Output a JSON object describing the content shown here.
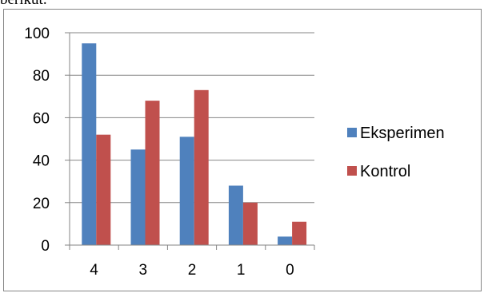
{
  "page": {
    "top_text": "berikut."
  },
  "chart_data": {
    "type": "bar",
    "categories": [
      "4",
      "3",
      "2",
      "1",
      "0"
    ],
    "series": [
      {
        "name": "Eksperimen",
        "color": "#4F81BD",
        "values": [
          95,
          45,
          51,
          28,
          4
        ]
      },
      {
        "name": "Kontrol",
        "color": "#C0504D",
        "values": [
          52,
          68,
          73,
          20,
          11
        ]
      }
    ],
    "ylim": [
      0,
      100
    ],
    "yticks": [
      0,
      20,
      40,
      60,
      80,
      100
    ],
    "grid": true,
    "legend": "right",
    "title": "",
    "xlabel": "",
    "ylabel": ""
  }
}
